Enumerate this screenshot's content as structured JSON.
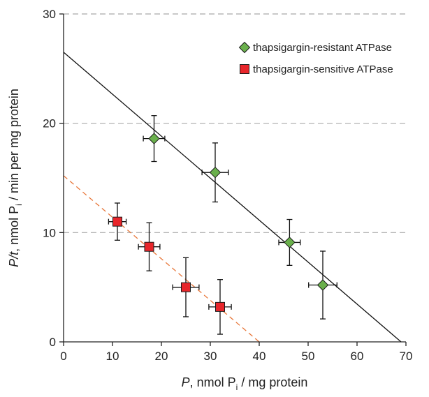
{
  "chart_data": {
    "type": "scatter",
    "title": "",
    "xlabel": {
      "main": "P",
      "rest": ", nmol P",
      "sub": "i",
      "tail": " / mg protein"
    },
    "ylabel": {
      "main": "P/t",
      "rest": ", nmol P",
      "sub": "i",
      "tail": " / min per mg protein"
    },
    "xlim": [
      0,
      70
    ],
    "ylim": [
      0,
      30
    ],
    "xticks": [
      0,
      10,
      20,
      30,
      40,
      50,
      60,
      70
    ],
    "yticks": [
      0,
      10,
      20,
      30
    ],
    "grid": {
      "y": true,
      "x": false,
      "style": "dashed"
    },
    "legend_position": "top-right",
    "series": [
      {
        "name": "thapsigargin-resistant ATPase",
        "marker": "diamond",
        "color": "#6ab04c",
        "fit_line": {
          "x": [
            0,
            69
          ],
          "y": [
            26.5,
            0
          ],
          "color": "#111111",
          "style": "solid"
        },
        "points": [
          {
            "x": 18.5,
            "y": 18.6,
            "xerr": 2.2,
            "yerr": 2.1
          },
          {
            "x": 31,
            "y": 15.5,
            "xerr": 2.7,
            "yerr": 2.7
          },
          {
            "x": 46.2,
            "y": 9.1,
            "xerr": 2.2,
            "yerr": 2.1
          },
          {
            "x": 53,
            "y": 5.2,
            "xerr": 2.9,
            "yerr": 3.1
          }
        ]
      },
      {
        "name": "thapsigargin-sensitive ATPase",
        "marker": "square",
        "color": "#e8262b",
        "fit_line": {
          "x": [
            0,
            40
          ],
          "y": [
            15.2,
            0
          ],
          "color": "#e8773a",
          "style": "dashed"
        },
        "points": [
          {
            "x": 11,
            "y": 11,
            "xerr": 1.8,
            "yerr": 1.7
          },
          {
            "x": 17.5,
            "y": 8.7,
            "xerr": 2.2,
            "yerr": 2.2
          },
          {
            "x": 25,
            "y": 5,
            "xerr": 2.7,
            "yerr": 2.7
          },
          {
            "x": 32,
            "y": 3.2,
            "xerr": 2.3,
            "yerr": 2.5
          }
        ]
      }
    ]
  }
}
